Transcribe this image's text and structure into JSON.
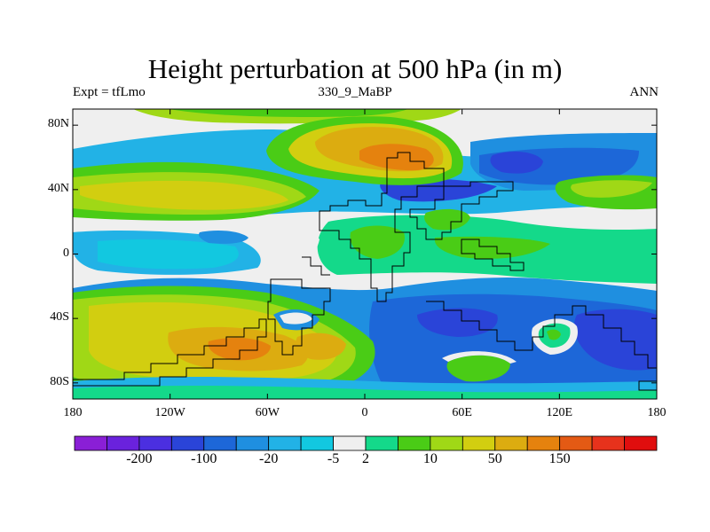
{
  "title": "Height perturbation at 500 hPa (in m)",
  "left_label": "Expt = tfLmo",
  "center_label": "330_9_MaBP",
  "right_label": "ANN",
  "lat_ticks": [
    {
      "label": "80N",
      "value": 80
    },
    {
      "label": "40N",
      "value": 40
    },
    {
      "label": "0",
      "value": 0
    },
    {
      "label": "40S",
      "value": -40
    },
    {
      "label": "80S",
      "value": -80
    }
  ],
  "lon_ticks": [
    {
      "label": "180",
      "value": -180
    },
    {
      "label": "120W",
      "value": -120
    },
    {
      "label": "60W",
      "value": -60
    },
    {
      "label": "0",
      "value": 0
    },
    {
      "label": "60E",
      "value": 60
    },
    {
      "label": "120E",
      "value": 120
    },
    {
      "label": "180",
      "value": 180
    }
  ],
  "colorbar": {
    "colors": [
      "#8a1fd6",
      "#6a22dd",
      "#4b2fe0",
      "#2a44d8",
      "#1d67d8",
      "#1f8fe0",
      "#22b2e6",
      "#12c8e0",
      "#efefef",
      "#14d98a",
      "#4acc16",
      "#a0d816",
      "#d2ce10",
      "#dcac10",
      "#e5820e",
      "#e45a14",
      "#e7321c",
      "#e00e0e"
    ],
    "labels": [
      {
        "text": "-200",
        "boundary": 2
      },
      {
        "text": "-100",
        "boundary": 4
      },
      {
        "text": "-20",
        "boundary": 6
      },
      {
        "text": "-5",
        "boundary": 8
      },
      {
        "text": "2",
        "boundary": 9
      },
      {
        "text": "10",
        "boundary": 11
      },
      {
        "text": "50",
        "boundary": 13
      },
      {
        "text": "150",
        "boundary": 15
      }
    ]
  },
  "palette": {
    "gray": "#efefef",
    "mint": "#14d98a",
    "green": "#4acc16",
    "lime": "#a0d816",
    "yellow": "#d2ce10",
    "gold": "#dcac10",
    "orange": "#e5820e",
    "cyan": "#12c8e0",
    "sky": "#22b2e6",
    "lightblue": "#1f8fe0",
    "blue": "#1d67d8",
    "darkblue": "#2a44d8",
    "navy": "#4b2fe0"
  }
}
